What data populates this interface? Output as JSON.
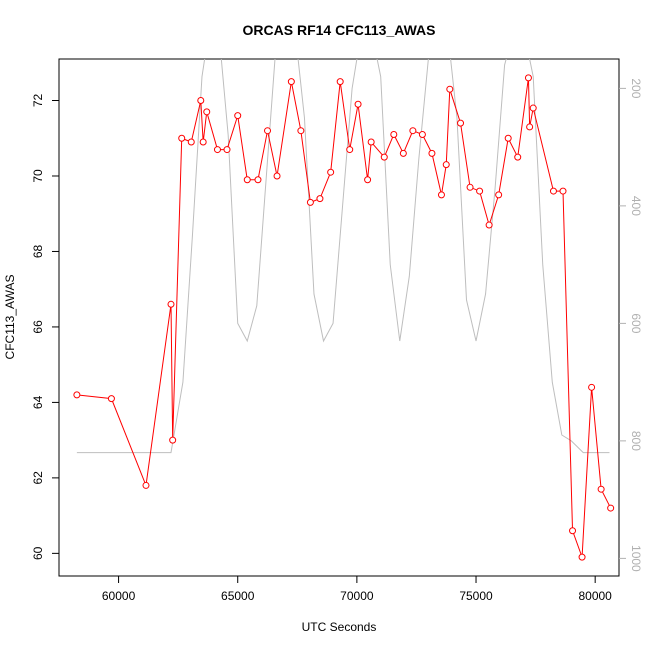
{
  "chart_data": {
    "type": "line",
    "title": "ORCAS RF14 CFC113_AWAS",
    "xlabel": "UTC Seconds",
    "ylabel": "CFC113_AWAS",
    "xlim": [
      57500,
      81000
    ],
    "ylim": [
      59.4,
      73.1
    ],
    "y2lim": [
      1030,
      150
    ],
    "xticks": [
      60000,
      65000,
      70000,
      75000,
      80000
    ],
    "xtick_labels": [
      "60000",
      "65000",
      "70000",
      "75000",
      "80000"
    ],
    "yticks": [
      60,
      62,
      64,
      66,
      68,
      70,
      72
    ],
    "ytick_labels": [
      "60",
      "62",
      "64",
      "66",
      "68",
      "70",
      "72"
    ],
    "y2ticks": [
      200,
      400,
      600,
      800,
      1000
    ],
    "y2tick_labels": [
      "200",
      "400",
      "600",
      "800",
      "1000"
    ],
    "grid": false,
    "series": [
      {
        "color": "#ff0000",
        "marker": "open-circle",
        "x": [
          58250,
          59700,
          61150,
          62200,
          62270,
          62650,
          63050,
          63450,
          63550,
          63700,
          64150,
          64550,
          65000,
          65400,
          65850,
          66250,
          66650,
          67250,
          67650,
          68050,
          68450,
          68900,
          69300,
          69700,
          70050,
          70450,
          70600,
          71150,
          71550,
          71950,
          72350,
          72750,
          73150,
          73550,
          73750,
          73900,
          74350,
          74750,
          75150,
          75550,
          75950,
          76350,
          76750,
          77200,
          77250,
          77400,
          78250,
          78650,
          79050,
          79450,
          79850,
          80250,
          80650
        ],
        "y": [
          64.2,
          64.1,
          61.8,
          66.6,
          63.0,
          71.0,
          70.9,
          72.0,
          70.9,
          71.7,
          70.7,
          70.7,
          71.6,
          69.9,
          69.9,
          71.2,
          70.0,
          72.5,
          71.2,
          69.3,
          69.4,
          70.1,
          72.5,
          70.7,
          71.9,
          69.9,
          70.9,
          70.5,
          71.1,
          70.6,
          71.2,
          71.1,
          70.6,
          69.5,
          70.3,
          72.3,
          71.4,
          69.7,
          69.6,
          68.7,
          69.5,
          71.0,
          70.5,
          72.6,
          71.3,
          71.8,
          69.6,
          69.6,
          60.6,
          59.9,
          64.4,
          61.7,
          61.2
        ]
      },
      {
        "color": "#bebebe",
        "axis": "right",
        "x": [
          58250,
          62200,
          62700,
          63100,
          63500,
          63800,
          64200,
          64600,
          65000,
          65400,
          65800,
          66200,
          66600,
          67000,
          67400,
          67800,
          68200,
          68600,
          69000,
          69400,
          69800,
          70200,
          70600,
          71000,
          71400,
          71800,
          72200,
          72600,
          73000,
          73400,
          73800,
          74200,
          74600,
          75000,
          75400,
          75800,
          76200,
          76600,
          77000,
          77400,
          77800,
          78200,
          78600,
          79000,
          79500,
          80600
        ],
        "y": [
          820,
          820,
          700,
          450,
          180,
          100,
          100,
          280,
          600,
          630,
          570,
          350,
          130,
          100,
          100,
          250,
          550,
          630,
          600,
          400,
          200,
          100,
          100,
          180,
          500,
          630,
          520,
          320,
          150,
          100,
          100,
          250,
          560,
          630,
          550,
          370,
          160,
          100,
          100,
          180,
          500,
          700,
          790,
          800,
          820,
          820
        ]
      }
    ]
  }
}
